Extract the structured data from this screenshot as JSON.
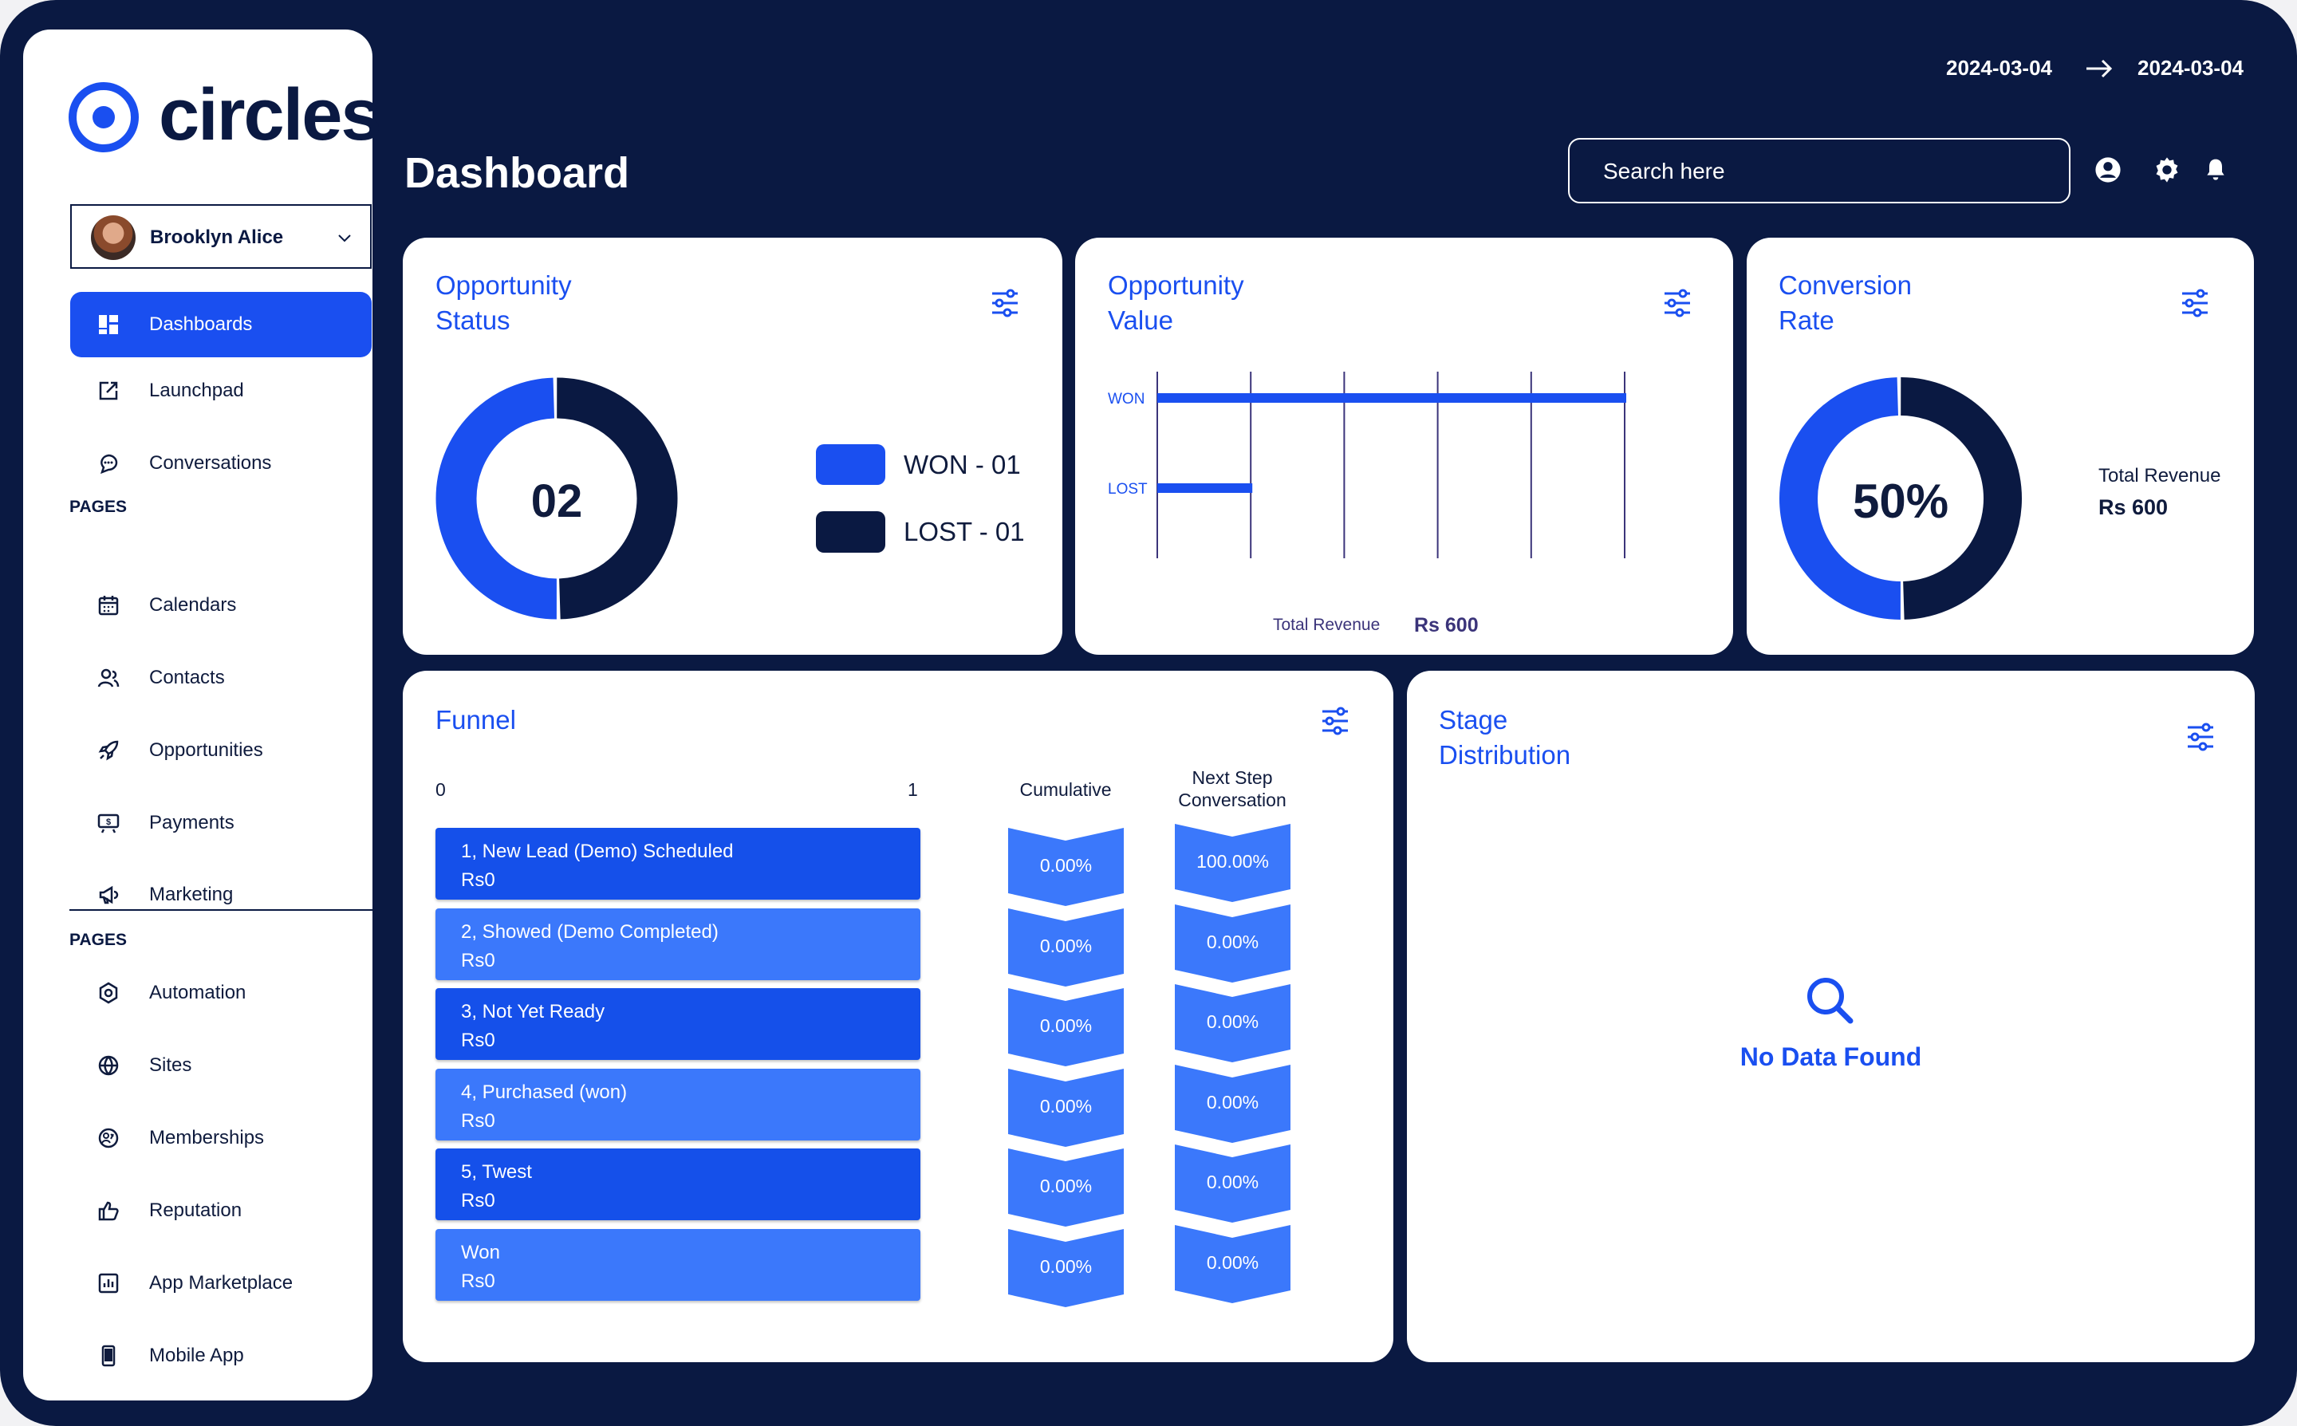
{
  "brand": {
    "name": "circles",
    "accent": "#1a4ff0",
    "navy": "#0a1942"
  },
  "user": {
    "name": "Brooklyn Alice"
  },
  "sidebar": {
    "items": [
      {
        "label": "Dashboards",
        "icon": "dashboard-icon",
        "active": true
      },
      {
        "label": "Launchpad",
        "icon": "launch-icon"
      },
      {
        "label": "Conversations",
        "icon": "chat-icon"
      },
      {
        "section": "PAGES"
      },
      {
        "label": "Calendars",
        "icon": "calendar-icon"
      },
      {
        "label": "Contacts",
        "icon": "contacts-icon"
      },
      {
        "label": "Opportunities",
        "icon": "rocket-icon"
      },
      {
        "label": "Payments",
        "icon": "payments-icon"
      },
      {
        "label": "Marketing",
        "icon": "megaphone-icon"
      },
      {
        "section": "PAGES"
      },
      {
        "label": "Automation",
        "icon": "automation-icon"
      },
      {
        "label": "Sites",
        "icon": "globe-icon"
      },
      {
        "label": "Memberships",
        "icon": "membership-icon"
      },
      {
        "label": "Reputation",
        "icon": "thumbs-up-icon"
      },
      {
        "label": "App Marketplace",
        "icon": "marketplace-icon"
      },
      {
        "label": "Mobile App",
        "icon": "mobile-icon"
      }
    ]
  },
  "header": {
    "title": "Dashboard",
    "date_from": "2024-03-04",
    "date_to": "2024-03-04",
    "search_placeholder": "Search here"
  },
  "opportunity_status": {
    "title_line1": "Opportunity",
    "title_line2": "Status",
    "total": "02",
    "legend": [
      {
        "label": "WON - 01",
        "value": 1,
        "color": "#1a4ff0"
      },
      {
        "label": "LOST - 01",
        "value": 1,
        "color": "#0a1942"
      }
    ]
  },
  "opportunity_value": {
    "title_line1": "Opportunity",
    "title_line2": "Value",
    "total_label": "Total Revenue",
    "total_value": "Rs 600"
  },
  "chart_data": {
    "type": "bar",
    "orientation": "horizontal",
    "categories": [
      "WON",
      "LOST"
    ],
    "values": [
      5,
      1
    ],
    "xlim": [
      0,
      5
    ],
    "grid": true,
    "color": "#1a4ff0"
  },
  "conversion_rate": {
    "title_line1": "Conversion",
    "title_line2": "Rate",
    "value": "50%",
    "percent": 50,
    "total_label": "Total Revenue",
    "total_value": "Rs 600"
  },
  "funnel": {
    "title": "Funnel",
    "axis_min": "0",
    "axis_max": "1",
    "col_cumulative": "Cumulative",
    "col_next_line1": "Next Step",
    "col_next_line2": "Conversation",
    "rows": [
      {
        "stage": "1, New Lead (Demo) Scheduled",
        "value": "Rs0",
        "cumulative": "0.00%",
        "next": "100.00%"
      },
      {
        "stage": "2, Showed (Demo Completed)",
        "value": "Rs0",
        "cumulative": "0.00%",
        "next": "0.00%"
      },
      {
        "stage": "3, Not Yet Ready",
        "value": "Rs0",
        "cumulative": "0.00%",
        "next": "0.00%"
      },
      {
        "stage": "4, Purchased (won)",
        "value": "Rs0",
        "cumulative": "0.00%",
        "next": "0.00%"
      },
      {
        "stage": "5, Twest",
        "value": "Rs0",
        "cumulative": "0.00%",
        "next": "0.00%"
      },
      {
        "stage": "Won",
        "value": "Rs0",
        "cumulative": "0.00%",
        "next": "0.00%"
      }
    ]
  },
  "stage_distribution": {
    "title_line1": "Stage",
    "title_line2": "Distribution",
    "empty_text": "No Data Found"
  }
}
